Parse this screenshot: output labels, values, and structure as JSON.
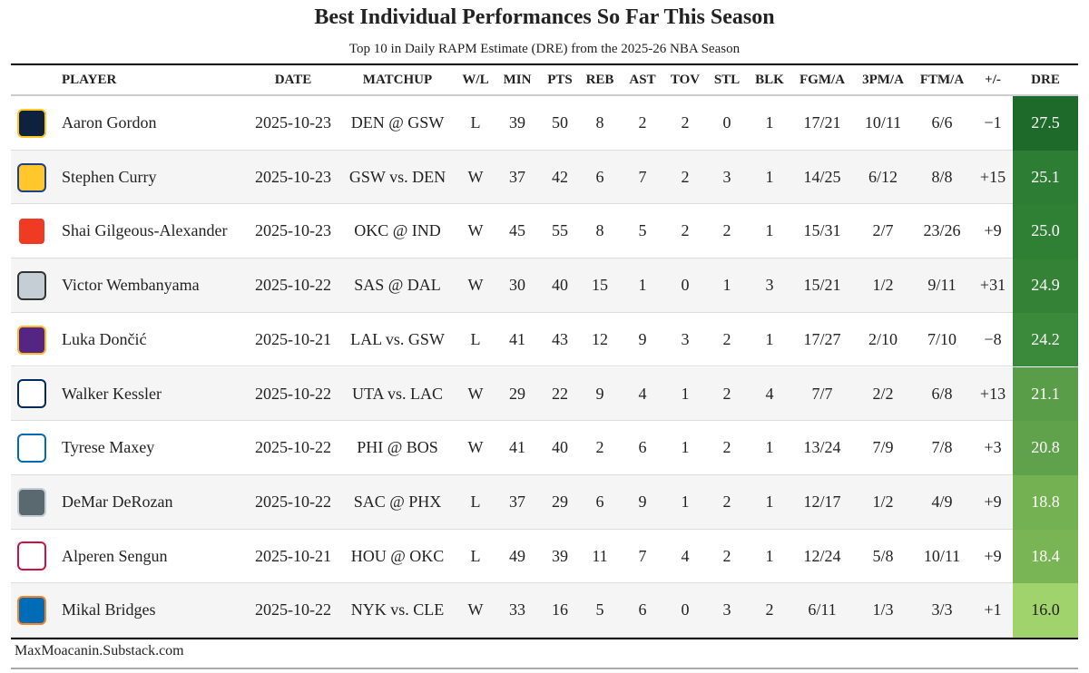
{
  "header": {
    "title": "Best Individual Performances So Far This Season",
    "subtitle": "Top 10 in Daily RAPM Estimate (DRE) from the 2025-26 NBA Season"
  },
  "table": {
    "columns": [
      "PLAYER",
      "DATE",
      "MATCHUP",
      "W/L",
      "MIN",
      "PTS",
      "REB",
      "AST",
      "TOV",
      "STL",
      "BLK",
      "FGM/A",
      "3PM/A",
      "FTM/A",
      "+/-",
      "DRE"
    ],
    "rows": [
      [
        "Aaron Gordon",
        "2025-10-23",
        "DEN @ GSW",
        "L",
        "39",
        "50",
        "8",
        "2",
        "2",
        "0",
        "1",
        "17/21",
        "10/11",
        "6/6",
        "−1",
        "27.5"
      ],
      [
        "Stephen Curry",
        "2025-10-23",
        "GSW vs. DEN",
        "W",
        "37",
        "42",
        "6",
        "7",
        "2",
        "3",
        "1",
        "14/25",
        "6/12",
        "8/8",
        "+15",
        "25.1"
      ],
      [
        "Shai Gilgeous-Alexander",
        "2025-10-23",
        "OKC @ IND",
        "W",
        "45",
        "55",
        "8",
        "5",
        "2",
        "2",
        "1",
        "15/31",
        "2/7",
        "23/26",
        "+9",
        "25.0"
      ],
      [
        "Victor Wembanyama",
        "2025-10-22",
        "SAS @ DAL",
        "W",
        "30",
        "40",
        "15",
        "1",
        "0",
        "1",
        "3",
        "15/21",
        "1/2",
        "9/11",
        "+31",
        "24.9"
      ],
      [
        "Luka Dončić",
        "2025-10-21",
        "LAL vs. GSW",
        "L",
        "41",
        "43",
        "12",
        "9",
        "3",
        "2",
        "1",
        "17/27",
        "2/10",
        "7/10",
        "−8",
        "24.2"
      ],
      [
        "Walker Kessler",
        "2025-10-22",
        "UTA vs. LAC",
        "W",
        "29",
        "22",
        "9",
        "4",
        "1",
        "2",
        "4",
        "7/7",
        "2/2",
        "6/8",
        "+13",
        "21.1"
      ],
      [
        "Tyrese Maxey",
        "2025-10-22",
        "PHI @ BOS",
        "W",
        "41",
        "40",
        "2",
        "6",
        "1",
        "2",
        "1",
        "13/24",
        "7/9",
        "7/8",
        "+3",
        "20.8"
      ],
      [
        "DeMar DeRozan",
        "2025-10-22",
        "SAC @ PHX",
        "L",
        "37",
        "29",
        "6",
        "9",
        "1",
        "2",
        "1",
        "12/17",
        "1/2",
        "4/9",
        "+9",
        "18.8"
      ],
      [
        "Alperen Sengun",
        "2025-10-21",
        "HOU @ OKC",
        "L",
        "49",
        "39",
        "11",
        "7",
        "4",
        "2",
        "1",
        "12/24",
        "5/8",
        "10/11",
        "+9",
        "18.4"
      ],
      [
        "Mikal Bridges",
        "2025-10-22",
        "NYK vs. CLE",
        "W",
        "33",
        "16",
        "5",
        "6",
        "0",
        "3",
        "2",
        "6/11",
        "1/3",
        "3/3",
        "+1",
        "16.0"
      ]
    ]
  },
  "footer": {
    "source": "MaxMoacanin.Substack.com"
  }
}
